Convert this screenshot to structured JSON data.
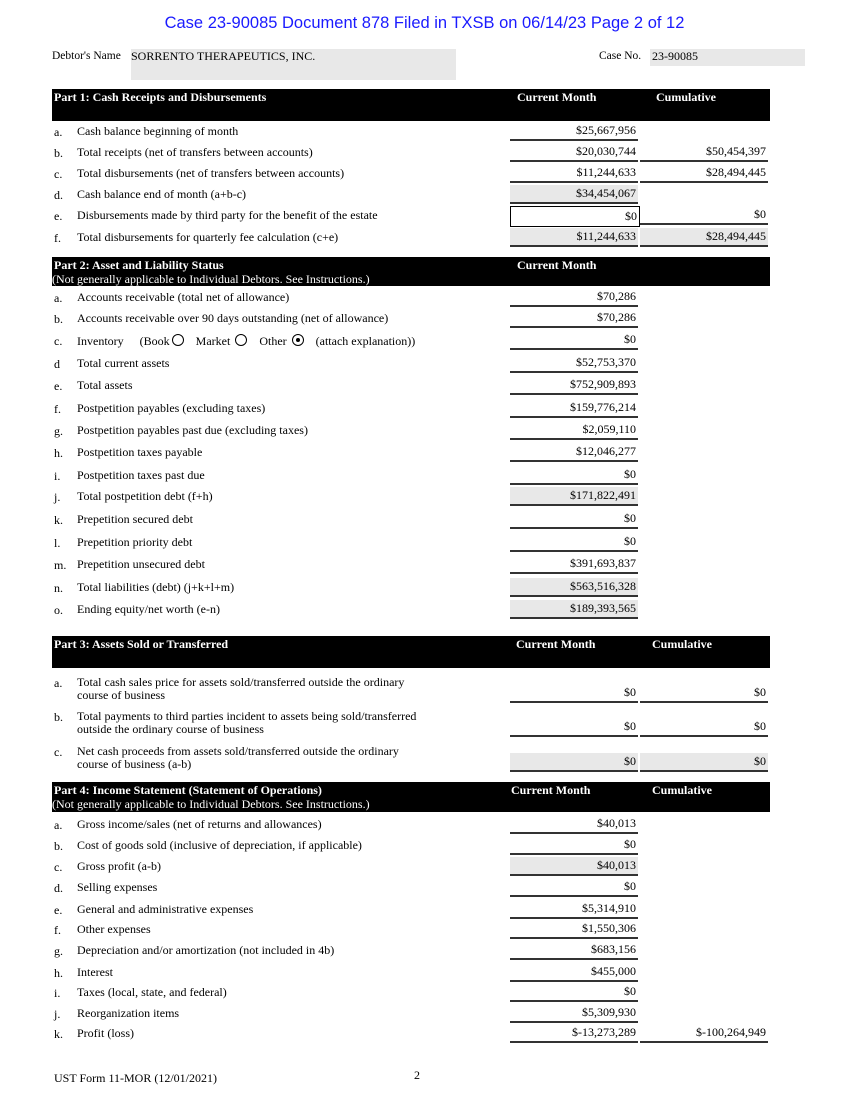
{
  "stamp": "Case 23-90085   Document 878   Filed in TXSB on 06/14/23   Page 2 of 12",
  "debtor": {
    "label": "Debtor's Name",
    "value": "SORRENTO THERAPEUTICS, INC.",
    "case_label": "Case No.",
    "case_value": "23-90085"
  },
  "parts": [
    {
      "title": "Part 1: Cash Receipts and Disbursements",
      "subtitle": "",
      "col_current": "Current Month",
      "col_cumulative": "Cumulative",
      "rows": [
        {
          "letter": "a.",
          "label": "Cash balance beginning of month",
          "current": "$25,667,956",
          "cumulative": null
        },
        {
          "letter": "b.",
          "label": "Total receipts (net of transfers between accounts)",
          "current": "$20,030,744",
          "cumulative": "$50,454,397"
        },
        {
          "letter": "c.",
          "label": "Total disbursements (net of transfers between accounts)",
          "current": "$11,244,633",
          "cumulative": "$28,494,445"
        },
        {
          "letter": "d.",
          "label": "Cash balance end of month (a+b-c)",
          "current": "$34,454,067",
          "cumulative": null,
          "shaded": true
        },
        {
          "letter": "e.",
          "label": "Disbursements made by third party for the benefit of the estate",
          "current": "$0",
          "cumulative": "$0",
          "boxed": true
        },
        {
          "letter": "f.",
          "label": "Total disbursements for quarterly fee calculation (c+e)",
          "current": "$11,244,633",
          "cumulative": "$28,494,445",
          "shaded": true,
          "shaded_cum": true
        }
      ]
    },
    {
      "title": "Part 2:  Asset and Liability Status",
      "subtitle": "(Not generally applicable to Individual Debtors. See Instructions.)",
      "col_current": "Current Month",
      "col_cumulative": "",
      "rows": [
        {
          "letter": "a.",
          "label": "Accounts receivable (total net of allowance)",
          "current": "$70,286"
        },
        {
          "letter": "b.",
          "label": "Accounts receivable over 90 days outstanding (net of allowance)",
          "current": "$70,286"
        },
        {
          "letter": "c.",
          "label": "Inventory",
          "current": "$0",
          "inventory": {
            "open": "(Book",
            "options": [
              {
                "label": "Book",
                "selected": false
              },
              {
                "label": "Market",
                "selected": false
              },
              {
                "label": "Other",
                "selected": true
              }
            ],
            "market": "Market",
            "other": "Other",
            "close": "(attach explanation))"
          }
        },
        {
          "letter": "d",
          "label": "Total current assets",
          "current": "$52,753,370"
        },
        {
          "letter": "e.",
          "label": "Total assets",
          "current": "$752,909,893"
        },
        {
          "letter": "f.",
          "label": "Postpetition payables (excluding taxes)",
          "current": "$159,776,214"
        },
        {
          "letter": "g.",
          "label": "Postpetition payables past due (excluding taxes)",
          "current": "$2,059,110"
        },
        {
          "letter": "h.",
          "label": "Postpetition taxes payable",
          "current": "$12,046,277"
        },
        {
          "letter": "i.",
          "label": "Postpetition taxes past due",
          "current": "$0"
        },
        {
          "letter": "j.",
          "label": "Total postpetition debt (f+h)",
          "current": "$171,822,491",
          "shaded": true
        },
        {
          "letter": "k.",
          "label": "Prepetition secured debt",
          "current": "$0"
        },
        {
          "letter": "l.",
          "label": "Prepetition priority debt",
          "current": "$0"
        },
        {
          "letter": "m.",
          "label": "Prepetition unsecured debt",
          "current": "$391,693,837"
        },
        {
          "letter": "n.",
          "label": "Total liabilities (debt) (j+k+l+m)",
          "current": "$563,516,328",
          "shaded": true
        },
        {
          "letter": "o.",
          "label": "Ending equity/net worth (e-n)",
          "current": "$189,393,565",
          "shaded": true
        }
      ]
    },
    {
      "title": "Part 3:  Assets Sold or Transferred",
      "subtitle": "",
      "col_current": "Current Month",
      "col_cumulative": "Cumulative",
      "rows": [
        {
          "letter": "a.",
          "label": "Total cash sales price for assets sold/transferred outside the ordinary",
          "label2": "course of business",
          "current": "$0",
          "cumulative": "$0"
        },
        {
          "letter": "b.",
          "label": "Total payments to third parties incident to assets being sold/transferred",
          "label2": "outside the ordinary course of business",
          "current": "$0",
          "cumulative": "$0"
        },
        {
          "letter": "c.",
          "label": "Net cash proceeds from assets sold/transferred outside the ordinary",
          "label2": "course of business (a-b)",
          "current": "$0",
          "cumulative": "$0",
          "shaded": true,
          "shaded_cum": true
        }
      ]
    },
    {
      "title": "Part 4:  Income Statement (Statement of Operations)",
      "subtitle": "(Not generally applicable to Individual Debtors. See Instructions.)",
      "col_current": "Current Month",
      "col_cumulative": "Cumulative",
      "rows": [
        {
          "letter": "a.",
          "label": "Gross income/sales (net of returns and allowances)",
          "current": "$40,013"
        },
        {
          "letter": "b.",
          "label": "Cost of goods sold (inclusive of depreciation, if applicable)",
          "current": "$0"
        },
        {
          "letter": "c.",
          "label": "Gross profit (a-b)",
          "current": "$40,013",
          "shaded": true
        },
        {
          "letter": "d.",
          "label": "Selling expenses",
          "current": "$0"
        },
        {
          "letter": "e.",
          "label": "General and administrative expenses",
          "current": "$5,314,910"
        },
        {
          "letter": "f.",
          "label": "Other expenses",
          "current": "$1,550,306"
        },
        {
          "letter": "g.",
          "label": "Depreciation and/or amortization (not included in 4b)",
          "current": "$683,156"
        },
        {
          "letter": "h.",
          "label": "Interest",
          "current": "$455,000"
        },
        {
          "letter": "i.",
          "label": "Taxes (local, state, and federal)",
          "current": "$0"
        },
        {
          "letter": "j.",
          "label": "Reorganization items",
          "current": "$5,309,930"
        },
        {
          "letter": "k.",
          "label": "Profit (loss)",
          "current": "$-13,273,289",
          "cumulative": "$-100,264,949"
        }
      ]
    }
  ],
  "footer": {
    "form": "UST Form 11-MOR (12/01/2021)",
    "page": "2"
  }
}
